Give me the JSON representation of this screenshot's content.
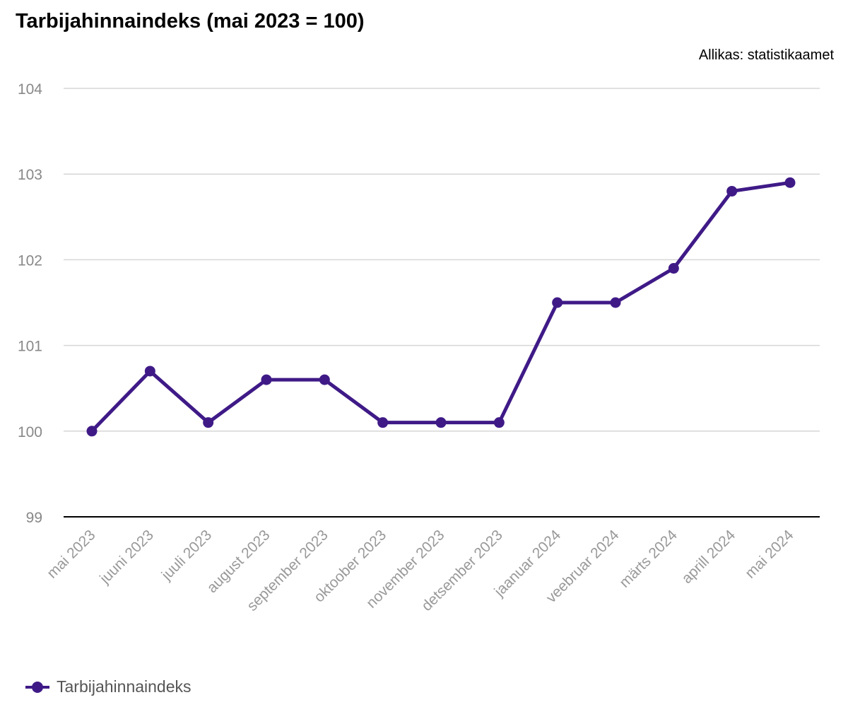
{
  "chart_data": {
    "type": "line",
    "title": "Tarbijahinnaindeks (mai 2023 = 100)",
    "source": "Allikas: statistikaamet",
    "categories": [
      "mai 2023",
      "juuni 2023",
      "juuli 2023",
      "august 2023",
      "september 2023",
      "oktoober 2023",
      "november 2023",
      "detsember 2023",
      "jaanuar 2024",
      "veebruar 2024",
      "märts 2024",
      "aprill 2024",
      "mai 2024"
    ],
    "series": [
      {
        "name": "Tarbijahinnaindeks",
        "color": "#3f1a87",
        "values": [
          100.0,
          100.7,
          100.1,
          100.6,
          100.6,
          100.1,
          100.1,
          100.1,
          101.5,
          101.5,
          101.9,
          102.8,
          102.9
        ]
      }
    ],
    "ylim": [
      99,
      104
    ],
    "yticks": [
      99,
      100,
      101,
      102,
      103,
      104
    ],
    "grid": true,
    "legend_position": "bottom-left"
  }
}
